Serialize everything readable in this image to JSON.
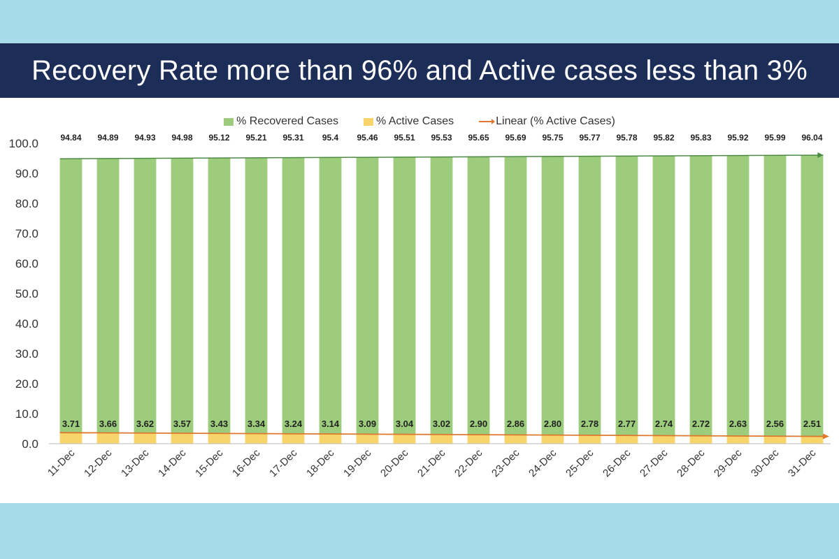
{
  "title": "Recovery Rate more than 96% and Active cases less than 3%",
  "colors": {
    "recovered": "#9ccc7c",
    "active": "#f7d56a",
    "trend": "#e0772f",
    "recovered_trend": "#4c8a44",
    "banner": "#1c2d57"
  },
  "legend": {
    "recovered": "% Recovered Cases",
    "active": "% Active Cases",
    "trend": "Linear (% Active Cases)"
  },
  "chart_data": {
    "type": "bar",
    "categories": [
      "11-Dec",
      "12-Dec",
      "13-Dec",
      "14-Dec",
      "15-Dec",
      "16-Dec",
      "17-Dec",
      "18-Dec",
      "19-Dec",
      "20-Dec",
      "21-Dec",
      "22-Dec",
      "23-Dec",
      "24-Dec",
      "25-Dec",
      "26-Dec",
      "27-Dec",
      "28-Dec",
      "29-Dec",
      "30-Dec",
      "31-Dec"
    ],
    "series": [
      {
        "name": "% Recovered Cases",
        "values": [
          94.84,
          94.89,
          94.93,
          94.98,
          95.12,
          95.21,
          95.31,
          95.4,
          95.46,
          95.51,
          95.53,
          95.65,
          95.69,
          95.75,
          95.77,
          95.78,
          95.82,
          95.83,
          95.92,
          95.99,
          96.04
        ],
        "labels": [
          "94.84",
          "94.89",
          "94.93",
          "94.98",
          "95.12",
          "95.21",
          "95.31",
          "95.4",
          "95.46",
          "95.51",
          "95.53",
          "95.65",
          "95.69",
          "95.75",
          "95.77",
          "95.78",
          "95.82",
          "95.83",
          "95.92",
          "95.99",
          "96.04"
        ]
      },
      {
        "name": "% Active Cases",
        "values": [
          3.71,
          3.66,
          3.62,
          3.57,
          3.43,
          3.34,
          3.24,
          3.14,
          3.09,
          3.04,
          3.02,
          2.9,
          2.86,
          2.8,
          2.78,
          2.77,
          2.74,
          2.72,
          2.63,
          2.56,
          2.51
        ],
        "labels": [
          "3.71",
          "3.66",
          "3.62",
          "3.57",
          "3.43",
          "3.34",
          "3.24",
          "3.14",
          "3.09",
          "3.04",
          "3.02",
          "2.90",
          "2.86",
          "2.80",
          "2.78",
          "2.77",
          "2.74",
          "2.72",
          "2.63",
          "2.56",
          "2.51"
        ]
      }
    ],
    "trendline": {
      "name": "Linear (% Active Cases)",
      "type": "linear",
      "of": "% Active Cases"
    },
    "ylim": [
      0,
      100
    ],
    "yticks": [
      "0.0",
      "10.0",
      "20.0",
      "30.0",
      "40.0",
      "50.0",
      "60.0",
      "70.0",
      "80.0",
      "90.0",
      "100.0"
    ],
    "legend_position": "top-center",
    "grid": false
  }
}
